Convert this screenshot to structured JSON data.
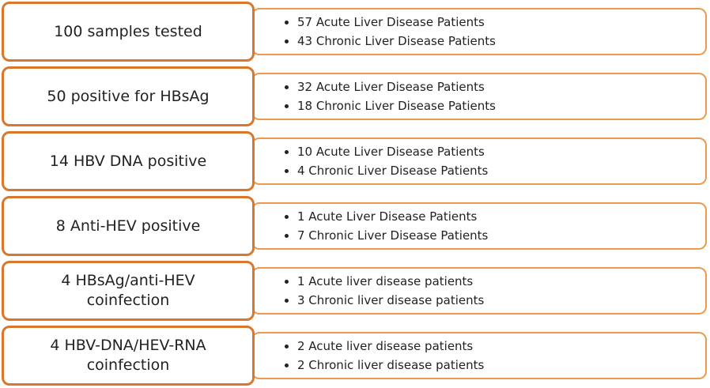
{
  "rows": [
    {
      "label": "100 samples tested",
      "items": [
        "57 Acute Liver Disease Patients",
        "43 Chronic Liver Disease Patients"
      ]
    },
    {
      "label": "50 positive for HBsAg",
      "items": [
        "32 Acute Liver Disease Patients",
        "18 Chronic Liver Disease Patients"
      ]
    },
    {
      "label": "14 HBV DNA positive",
      "items": [
        "10 Acute Liver Disease Patients",
        "4 Chronic Liver Disease Patients"
      ]
    },
    {
      "label": "8 Anti-HEV positive",
      "items": [
        "1 Acute Liver Disease Patients",
        "7 Chronic Liver Disease Patients"
      ]
    },
    {
      "label": "4 HBsAg/anti-HEV coinfection",
      "items": [
        "1 Acute liver disease patients",
        "3 Chronic liver disease patients"
      ]
    },
    {
      "label": "4 HBV-DNA/HEV-RNA coinfection",
      "items": [
        "2 Acute liver disease patients",
        "2 Chronic liver disease patients"
      ]
    }
  ]
}
